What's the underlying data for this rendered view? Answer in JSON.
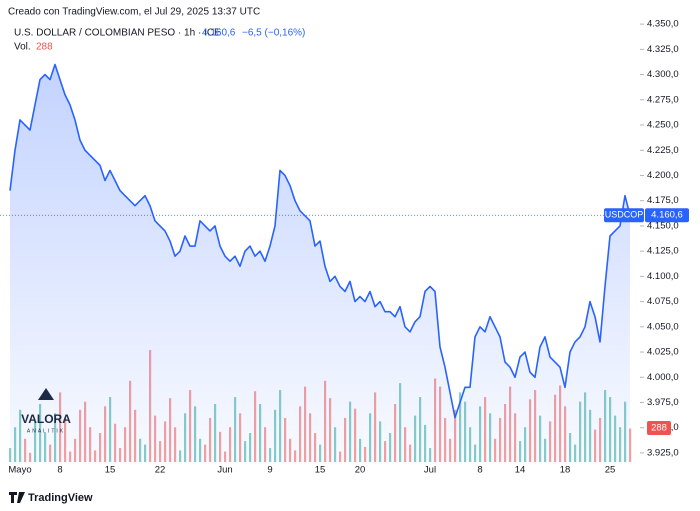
{
  "header": {
    "created": "Creado con TradingView.com, el Jul 29, 2025 13:37 UTC",
    "symbol": "U.S. DOLLAR / COLOMBIAN PESO · 1h · ICE",
    "change": "−6,5 (−0,16%)"
  },
  "chart_data": {
    "type": "area",
    "categories": [
      null,
      null,
      "Mayo",
      null,
      null,
      null,
      null,
      null,
      null,
      null,
      "8",
      null,
      null,
      null,
      null,
      null,
      null,
      null,
      null,
      null,
      "15",
      null,
      null,
      null,
      null,
      null,
      null,
      null,
      null,
      null,
      "22",
      null,
      null,
      null,
      null,
      null,
      null,
      null,
      null,
      null,
      null,
      null,
      null,
      "Jun",
      null,
      null,
      null,
      null,
      null,
      null,
      null,
      null,
      "9",
      null,
      null,
      null,
      null,
      null,
      null,
      null,
      null,
      null,
      "15",
      null,
      null,
      null,
      null,
      null,
      null,
      null,
      "20",
      null,
      null,
      null,
      null,
      null,
      null,
      null,
      null,
      null,
      null,
      null,
      null,
      null,
      "Jul",
      null,
      null,
      null,
      null,
      null,
      null,
      null,
      null,
      null,
      "8",
      null,
      null,
      null,
      null,
      null,
      null,
      null,
      "14",
      null,
      null,
      null,
      null,
      null,
      null,
      null,
      null,
      "18",
      null,
      null,
      null,
      null,
      null,
      null,
      null,
      null,
      "25",
      null,
      null,
      null,
      null
    ],
    "series": [
      {
        "name": "USDCOP",
        "color": "#2962ff",
        "values": [
          4185,
          4225,
          4255,
          4250,
          4245,
          4270,
          4295,
          4300,
          4295,
          4310,
          4295,
          4280,
          4270,
          4255,
          4235,
          4225,
          4220,
          4215,
          4210,
          4195,
          4205,
          4195,
          4185,
          4180,
          4175,
          4170,
          4175,
          4180,
          4170,
          4155,
          4150,
          4145,
          4135,
          4120,
          4125,
          4140,
          4130,
          4130,
          4155,
          4150,
          4145,
          4150,
          4130,
          4120,
          4115,
          4120,
          4110,
          4125,
          4130,
          4120,
          4125,
          4115,
          4130,
          4150,
          4205,
          4200,
          4190,
          4175,
          4165,
          4160,
          4155,
          4130,
          4135,
          4110,
          4095,
          4100,
          4090,
          4085,
          4095,
          4075,
          4080,
          4075,
          4085,
          4070,
          4075,
          4065,
          4065,
          4060,
          4070,
          4050,
          4045,
          4055,
          4060,
          4085,
          4090,
          4085,
          4030,
          4010,
          3985,
          3960,
          3975,
          3990,
          3990,
          4040,
          4050,
          4045,
          4060,
          4050,
          4040,
          4015,
          4010,
          4000,
          4020,
          4025,
          4005,
          4000,
          4030,
          4040,
          4020,
          4015,
          4010,
          3990,
          4025,
          4035,
          4040,
          4050,
          4075,
          4060,
          4035,
          4090,
          4140,
          4145,
          4150,
          4180,
          4160.6
        ]
      },
      {
        "name": "Vol.",
        "axis": "y2",
        "up_color": "#26a69a",
        "down_color": "#ef5350",
        "values": [
          120,
          300,
          450,
          200,
          80,
          350,
          500,
          250,
          150,
          420,
          600,
          380,
          90,
          200,
          450,
          520,
          300,
          100,
          250,
          480,
          560,
          330,
          120,
          300,
          700,
          450,
          200,
          150,
          965,
          400,
          180,
          350,
          550,
          300,
          100,
          420,
          620,
          480,
          200,
          150,
          380,
          500,
          260,
          90,
          300,
          560,
          420,
          180,
          250,
          610,
          500,
          300,
          120,
          450,
          620,
          380,
          200,
          100,
          480,
          650,
          420,
          250,
          150,
          700,
          550,
          300,
          90,
          380,
          520,
          460,
          200,
          130,
          420,
          600,
          350,
          180,
          250,
          500,
          680,
          300,
          150,
          400,
          560,
          320,
          120,
          720,
          650,
          380,
          200,
          450,
          600,
          520,
          300,
          150,
          480,
          560,
          420,
          200,
          380,
          500,
          650,
          420,
          180,
          300,
          540,
          620,
          400,
          200,
          350,
          580,
          660,
          480,
          250,
          150,
          520,
          600,
          450,
          280,
          380,
          620,
          560,
          400,
          300,
          520,
          288
        ]
      }
    ],
    "price_label": "4.160,6",
    "ylim": [
      3916,
      4364
    ],
    "yticks": [
      {
        "value": 3925,
        "label": "3.925,0"
      },
      {
        "value": 3950,
        "label": "3.950,0"
      },
      {
        "value": 3975,
        "label": "3.975,0"
      },
      {
        "value": 4000,
        "label": "4.000,0"
      },
      {
        "value": 4025,
        "label": "4.025,0"
      },
      {
        "value": 4050,
        "label": "4.050,0"
      },
      {
        "value": 4075,
        "label": "4.075,0"
      },
      {
        "value": 4100,
        "label": "4.100,0"
      },
      {
        "value": 4125,
        "label": "4.125,0"
      },
      {
        "value": 4150,
        "label": "4.150,0"
      },
      {
        "value": 4175,
        "label": "4.175,0"
      },
      {
        "value": 4200,
        "label": "4.200,0"
      },
      {
        "value": 4225,
        "label": "4.225,0"
      },
      {
        "value": 4250,
        "label": "4.250,0"
      },
      {
        "value": 4275,
        "label": "4.275,0"
      },
      {
        "value": 4300,
        "label": "4.300,0"
      },
      {
        "value": 4325,
        "label": "4.325,0"
      },
      {
        "value": 4350,
        "label": "4.350,0"
      }
    ],
    "y2lim": [
      0,
      1500
    ]
  },
  "logo": {
    "name": "VALORA",
    "sub": "ANALITIK"
  },
  "footer": "TradingView"
}
